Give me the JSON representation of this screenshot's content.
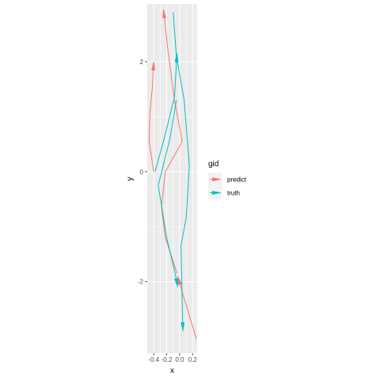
{
  "chart_data": {
    "type": "line",
    "xlabel": "x",
    "ylabel": "y",
    "xlim": [
      -0.5,
      0.27
    ],
    "ylim": [
      -3.3,
      3.05
    ],
    "x_ticks": [
      -0.4,
      -0.2,
      0.0,
      0.2
    ],
    "x_tick_labels": [
      "-0.4",
      "-0.2",
      "0.0",
      "0.2"
    ],
    "y_ticks": [
      -2,
      0,
      2
    ],
    "y_tick_labels": [
      "-2",
      "0",
      "2"
    ],
    "grid": true,
    "legend": {
      "title": "gid",
      "position": "right"
    },
    "series": [
      {
        "name": "predict",
        "color": "#F8766D",
        "segments": [
          {
            "arrow": "end",
            "points": [
              [
                0.26,
                -3.05
              ],
              [
                0.03,
                -2.15
              ],
              [
                -0.03,
                -1.9
              ]
            ]
          },
          {
            "arrow": "end",
            "points": [
              [
                -0.04,
                -1.85
              ],
              [
                -0.22,
                -1.2
              ],
              [
                -0.28,
                -0.65
              ],
              [
                -0.22,
                0.0
              ],
              [
                0.04,
                0.55
              ],
              [
                -0.08,
                1.3
              ],
              [
                -0.18,
                2.2
              ],
              [
                -0.25,
                2.95
              ]
            ]
          },
          {
            "arrow": "end",
            "points": [
              [
                -0.4,
                0.0
              ],
              [
                -0.47,
                0.55
              ],
              [
                -0.46,
                1.05
              ],
              [
                -0.42,
                1.55
              ],
              [
                -0.4,
                2.0
              ]
            ]
          }
        ]
      },
      {
        "name": "truth",
        "color": "#00BFC4",
        "segments": [
          {
            "arrow": "end",
            "points": [
              [
                -0.1,
                2.9
              ],
              [
                -0.05,
                2.1
              ],
              [
                0.07,
                1.3
              ],
              [
                0.15,
                0.1
              ],
              [
                0.1,
                -0.85
              ],
              [
                0.02,
                -1.35
              ],
              [
                0.05,
                -2.9
              ]
            ]
          },
          {
            "arrow": "end",
            "points": [
              [
                -0.05,
                1.3
              ],
              [
                -0.15,
                0.6
              ],
              [
                -0.33,
                -0.25
              ],
              [
                -0.2,
                -1.2
              ],
              [
                -0.07,
                -1.85
              ],
              [
                -0.03,
                -2.1
              ]
            ]
          },
          {
            "arrow": "end",
            "points": [
              [
                -0.38,
                0.0
              ],
              [
                -0.25,
                0.55
              ],
              [
                -0.08,
                1.35
              ],
              [
                -0.04,
                2.15
              ]
            ]
          }
        ]
      }
    ]
  }
}
